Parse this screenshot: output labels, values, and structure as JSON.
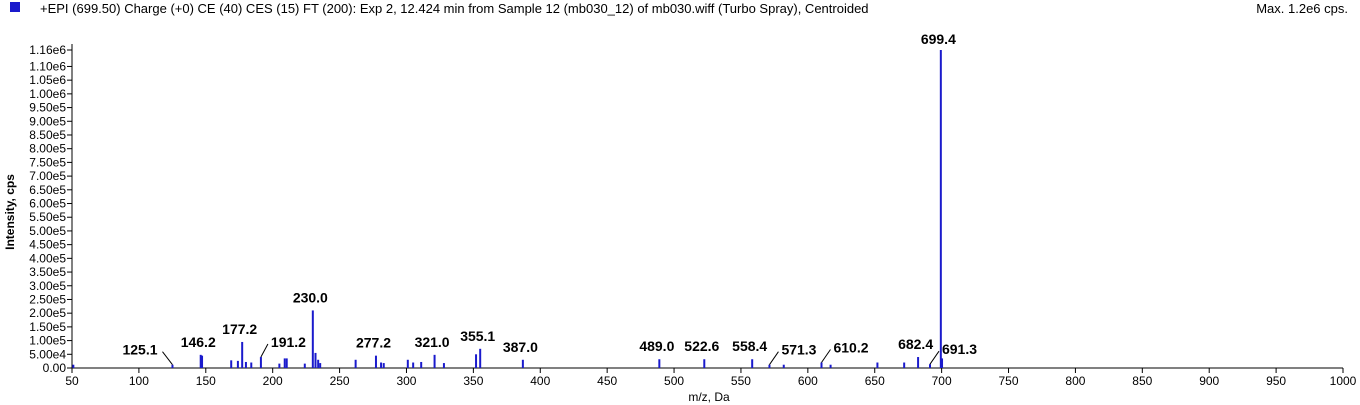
{
  "header": {
    "legend_color": "#1a1acc",
    "title": "+EPI (699.50) Charge (+0) CE (40) CES (15) FT (200): Exp 2, 12.424 min from Sample 12 (mb030_12) of mb030.wiff (Turbo Spray), Centroided",
    "max_label": "Max. 1.2e6 cps."
  },
  "chart_data": {
    "type": "bar",
    "xlabel": "m/z, Da",
    "ylabel": "Intensity, cps",
    "xlim": [
      50,
      1000
    ],
    "ylim": [
      0,
      1160000
    ],
    "bar_color": "#1a1acc",
    "x_ticks": [
      50,
      100,
      150,
      200,
      250,
      300,
      350,
      400,
      450,
      500,
      550,
      600,
      650,
      700,
      750,
      800,
      850,
      900,
      950,
      1000
    ],
    "x_tick_labels": [
      "50",
      "100",
      "150",
      "200",
      "250",
      "300",
      "350",
      "400",
      "450",
      "500",
      "550",
      "600",
      "650",
      "700",
      "750",
      "800",
      "850",
      "900",
      "950",
      "1000"
    ],
    "y_ticks": [
      0,
      50000,
      100000,
      150000,
      200000,
      250000,
      300000,
      350000,
      400000,
      450000,
      500000,
      550000,
      600000,
      650000,
      700000,
      750000,
      800000,
      850000,
      900000,
      950000,
      1000000,
      1050000,
      1100000,
      1160000
    ],
    "y_tick_labels": [
      "0.00",
      "5.00e4",
      "1.00e5",
      "1.50e5",
      "2.00e5",
      "2.50e5",
      "3.00e5",
      "3.50e5",
      "4.00e5",
      "4.50e5",
      "5.00e5",
      "5.50e5",
      "6.00e5",
      "6.50e5",
      "7.00e5",
      "7.50e5",
      "8.00e5",
      "8.50e5",
      "9.00e5",
      "9.50e5",
      "1.00e6",
      "1.05e6",
      "1.10e6",
      "1.16e6"
    ],
    "y_tick_label_every": 2,
    "peaks": [
      {
        "mz": 51,
        "intensity": 12000
      },
      {
        "mz": 125.1,
        "intensity": 12000
      },
      {
        "mz": 146.2,
        "intensity": 48000
      },
      {
        "mz": 147.2,
        "intensity": 45000
      },
      {
        "mz": 169.0,
        "intensity": 28000
      },
      {
        "mz": 174.0,
        "intensity": 26000
      },
      {
        "mz": 177.2,
        "intensity": 95000
      },
      {
        "mz": 180.0,
        "intensity": 22000
      },
      {
        "mz": 184.0,
        "intensity": 20000
      },
      {
        "mz": 191.2,
        "intensity": 40000
      },
      {
        "mz": 205.0,
        "intensity": 16000
      },
      {
        "mz": 209.0,
        "intensity": 35000
      },
      {
        "mz": 210.5,
        "intensity": 35000
      },
      {
        "mz": 224.0,
        "intensity": 16000
      },
      {
        "mz": 230.0,
        "intensity": 210000
      },
      {
        "mz": 232.0,
        "intensity": 55000
      },
      {
        "mz": 234.0,
        "intensity": 30000
      },
      {
        "mz": 235.5,
        "intensity": 18000
      },
      {
        "mz": 262.0,
        "intensity": 30000
      },
      {
        "mz": 277.2,
        "intensity": 45000
      },
      {
        "mz": 281.0,
        "intensity": 20000
      },
      {
        "mz": 283.0,
        "intensity": 18000
      },
      {
        "mz": 301.0,
        "intensity": 30000
      },
      {
        "mz": 305.0,
        "intensity": 20000
      },
      {
        "mz": 311.0,
        "intensity": 22000
      },
      {
        "mz": 321.0,
        "intensity": 48000
      },
      {
        "mz": 328.0,
        "intensity": 18000
      },
      {
        "mz": 352.0,
        "intensity": 50000
      },
      {
        "mz": 355.1,
        "intensity": 70000
      },
      {
        "mz": 387.0,
        "intensity": 30000
      },
      {
        "mz": 489.0,
        "intensity": 32000
      },
      {
        "mz": 522.6,
        "intensity": 32000
      },
      {
        "mz": 558.4,
        "intensity": 32000
      },
      {
        "mz": 571.3,
        "intensity": 12000
      },
      {
        "mz": 582.0,
        "intensity": 12000
      },
      {
        "mz": 610.2,
        "intensity": 20000
      },
      {
        "mz": 617.0,
        "intensity": 12000
      },
      {
        "mz": 652.0,
        "intensity": 20000
      },
      {
        "mz": 672.0,
        "intensity": 20000
      },
      {
        "mz": 682.4,
        "intensity": 40000
      },
      {
        "mz": 691.3,
        "intensity": 14000
      },
      {
        "mz": 699.4,
        "intensity": 1160000
      },
      {
        "mz": 700.3,
        "intensity": 35000
      }
    ],
    "peak_labels": [
      {
        "text": "125.1",
        "mz": 125.1,
        "intensity": 12000,
        "dx": -50,
        "dy": -10,
        "leader": true
      },
      {
        "text": "146.2",
        "mz": 146.2,
        "intensity": 48000,
        "dx": -20,
        "dy": -8,
        "leader": false
      },
      {
        "text": "177.2",
        "mz": 177.2,
        "intensity": 95000,
        "dx": -20,
        "dy": -8,
        "leader": false
      },
      {
        "text": "191.2",
        "mz": 191.2,
        "intensity": 40000,
        "dx": 10,
        "dy": -10,
        "leader": true
      },
      {
        "text": "230.0",
        "mz": 230.0,
        "intensity": 210000,
        "dx": -20,
        "dy": -8,
        "leader": false
      },
      {
        "text": "277.2",
        "mz": 277.2,
        "intensity": 45000,
        "dx": -20,
        "dy": -8,
        "leader": false
      },
      {
        "text": "321.0",
        "mz": 321.0,
        "intensity": 48000,
        "dx": -20,
        "dy": -8,
        "leader": false
      },
      {
        "text": "355.1",
        "mz": 355.1,
        "intensity": 70000,
        "dx": -20,
        "dy": -8,
        "leader": false
      },
      {
        "text": "387.0",
        "mz": 387.0,
        "intensity": 30000,
        "dx": -20,
        "dy": -8,
        "leader": false
      },
      {
        "text": "489.0",
        "mz": 489.0,
        "intensity": 32000,
        "dx": -20,
        "dy": -8,
        "leader": false
      },
      {
        "text": "522.6",
        "mz": 522.6,
        "intensity": 32000,
        "dx": -20,
        "dy": -8,
        "leader": false
      },
      {
        "text": "558.4",
        "mz": 558.4,
        "intensity": 32000,
        "dx": -20,
        "dy": -8,
        "leader": false
      },
      {
        "text": "571.3",
        "mz": 571.3,
        "intensity": 12000,
        "dx": 12,
        "dy": -10,
        "leader": true
      },
      {
        "text": "610.2",
        "mz": 610.2,
        "intensity": 20000,
        "dx": 12,
        "dy": -10,
        "leader": true
      },
      {
        "text": "682.4",
        "mz": 682.4,
        "intensity": 40000,
        "dx": -20,
        "dy": -8,
        "leader": false
      },
      {
        "text": "691.3",
        "mz": 691.3,
        "intensity": 14000,
        "dx": 12,
        "dy": -10,
        "leader": true
      },
      {
        "text": "699.4",
        "mz": 699.4,
        "intensity": 1160000,
        "dx": -20,
        "dy": -6,
        "leader": false
      }
    ]
  }
}
